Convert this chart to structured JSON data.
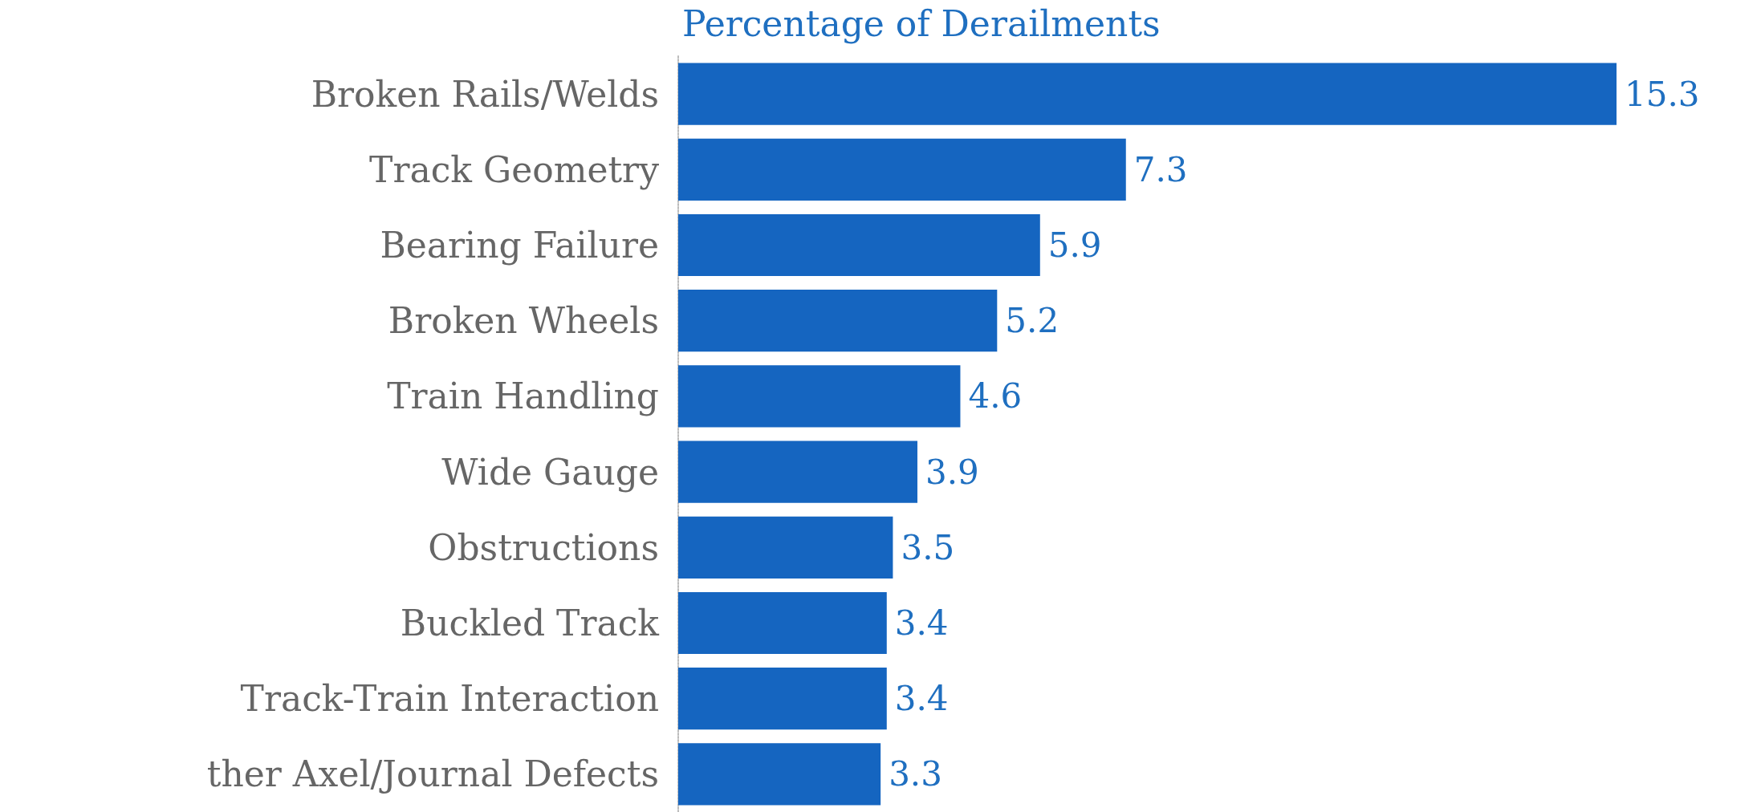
{
  "chart_data": {
    "type": "bar",
    "orientation": "horizontal",
    "title": "Percentage of Derailments",
    "categories": [
      "Broken Rails/Welds",
      "Track Geometry",
      "Bearing Failure",
      "Broken Wheels",
      "Train Handling",
      "Wide Gauge",
      "Obstructions",
      "Buckled Track",
      "Track-Train Interaction",
      "ther Axel/Journal Defects"
    ],
    "values": [
      15.3,
      7.3,
      5.9,
      5.2,
      4.6,
      3.9,
      3.5,
      3.4,
      3.4,
      3.3
    ],
    "color": "#1565c0",
    "data_labels": true
  }
}
